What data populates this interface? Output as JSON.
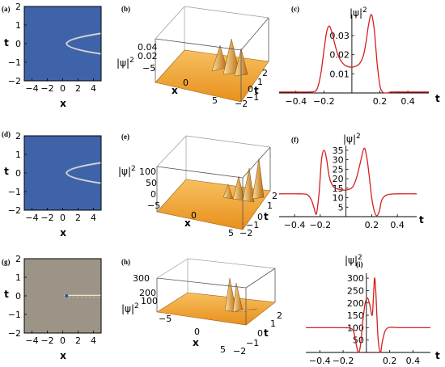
{
  "colors": {
    "density_blue": "#3f63a8",
    "density_gray": "#9c9587",
    "surface_orange": "#f0a030",
    "curve_red": "#d42020"
  },
  "chart_data": [
    {
      "panel": "a",
      "label": "(a)",
      "type": "heatmap",
      "xlabel": "x",
      "ylabel": "t",
      "xlim": [
        -5,
        5
      ],
      "ylim": [
        -2,
        2
      ],
      "xticks": [
        {
          "v": -4,
          "t": "−4"
        },
        {
          "v": -2,
          "t": "−2"
        },
        {
          "v": 0,
          "t": "0"
        },
        {
          "v": 2,
          "t": "2"
        },
        {
          "v": 4,
          "t": "4"
        }
      ],
      "yticks": [
        {
          "v": 2,
          "t": "2"
        },
        {
          "v": 1,
          "t": "1"
        },
        {
          "v": 0,
          "t": "0"
        },
        {
          "v": -1,
          "t": "−1"
        },
        {
          "v": -2,
          "t": "−2"
        }
      ],
      "background": "#3f63a8",
      "ridge": "parabolic ridge opening toward +x from x≈0.5, t≈0"
    },
    {
      "panel": "b",
      "label": "(b)",
      "type": "surface3d",
      "xlabel": "x",
      "ylabel": "t",
      "zlabel": "|ψ|²",
      "xticks": [
        "−5",
        "0",
        "5"
      ],
      "tticks": [
        "−2",
        "−1",
        "0",
        "1",
        "2"
      ],
      "zticks": [
        "0.04",
        "0.02"
      ]
    },
    {
      "panel": "c",
      "label": "(c)",
      "type": "line",
      "xlabel": "t",
      "ylabel": "|ψ|²",
      "xlim": [
        -0.52,
        0.55
      ],
      "ylim": [
        0,
        0.041
      ],
      "xticks": [
        {
          "v": -0.4,
          "t": "−0.4"
        },
        {
          "v": -0.2,
          "t": "−0.2"
        },
        {
          "v": 0.2,
          "t": "0.2"
        },
        {
          "v": 0.4,
          "t": "0.4"
        }
      ],
      "yticks": [
        {
          "v": 0.01,
          "t": "0.01"
        },
        {
          "v": 0.02,
          "t": "0.02"
        },
        {
          "v": 0.03,
          "t": "0.03"
        }
      ],
      "x": [
        -0.52,
        -0.4,
        -0.3,
        -0.26,
        -0.24,
        -0.22,
        -0.2,
        -0.18,
        -0.16,
        -0.14,
        -0.12,
        -0.1,
        -0.08,
        -0.05,
        0,
        0.05,
        0.08,
        0.1,
        0.12,
        0.14,
        0.16,
        0.18,
        0.2,
        0.22,
        0.25,
        0.28,
        0.32,
        0.4,
        0.55
      ],
      "y": [
        0.0005,
        0.0005,
        0.0005,
        0.001,
        0.004,
        0.011,
        0.022,
        0.032,
        0.035,
        0.031,
        0.025,
        0.02,
        0.017,
        0.0145,
        0.0135,
        0.015,
        0.019,
        0.026,
        0.036,
        0.041,
        0.033,
        0.016,
        0.004,
        0.0005,
        0,
        0.0005,
        0.0005,
        0.0005,
        0.0005
      ]
    },
    {
      "panel": "d",
      "label": "(d)",
      "type": "heatmap",
      "xlabel": "x",
      "ylabel": "t",
      "xlim": [
        -5,
        5
      ],
      "ylim": [
        -2,
        2
      ],
      "xticks": [
        {
          "v": -4,
          "t": "−4"
        },
        {
          "v": -2,
          "t": "−2"
        },
        {
          "v": 0,
          "t": "0"
        },
        {
          "v": 2,
          "t": "2"
        },
        {
          "v": 4,
          "t": "4"
        }
      ],
      "yticks": [
        {
          "v": 2,
          "t": "2"
        },
        {
          "v": 1,
          "t": "1"
        },
        {
          "v": 0,
          "t": "0"
        },
        {
          "v": -1,
          "t": "−1"
        },
        {
          "v": -2,
          "t": "−2"
        }
      ],
      "background": "#3f63a8",
      "ridge": "parabolic ridge opening toward +x from x≈0.5, t≈0"
    },
    {
      "panel": "e",
      "label": "(e)",
      "type": "surface3d",
      "xlabel": "x",
      "ylabel": "t",
      "zlabel": "|ψ|²",
      "xticks": [
        "−5",
        "0",
        "5"
      ],
      "tticks": [
        "−2",
        "−1",
        "0",
        "1",
        "2"
      ],
      "zticks": [
        "100",
        "50",
        "0"
      ]
    },
    {
      "panel": "f",
      "label": "(f)",
      "type": "line",
      "xlabel": "t",
      "ylabel": "|ψ|²",
      "xlim": [
        -0.52,
        0.55
      ],
      "ylim": [
        0,
        37.5
      ],
      "xticks": [
        {
          "v": -0.4,
          "t": "−0.4"
        },
        {
          "v": -0.2,
          "t": "−0.2"
        },
        {
          "v": 0.2,
          "t": "0.2"
        },
        {
          "v": 0.4,
          "t": "0.4"
        }
      ],
      "yticks": [
        {
          "v": 5,
          "t": "5"
        },
        {
          "v": 10,
          "t": "10"
        },
        {
          "v": 15,
          "t": "15"
        },
        {
          "v": 20,
          "t": "20"
        },
        {
          "v": 25,
          "t": "25"
        },
        {
          "v": 30,
          "t": "30"
        },
        {
          "v": 35,
          "t": "35"
        }
      ],
      "x": [
        -0.52,
        -0.35,
        -0.3,
        -0.27,
        -0.25,
        -0.23,
        -0.21,
        -0.19,
        -0.17,
        -0.15,
        -0.13,
        -0.1,
        -0.06,
        0,
        0.05,
        0.08,
        0.11,
        0.14,
        0.16,
        0.18,
        0.2,
        0.22,
        0.24,
        0.26,
        0.28,
        0.32,
        0.4,
        0.55
      ],
      "y": [
        12,
        12,
        11.5,
        9,
        5,
        1.5,
        12,
        30,
        35,
        30,
        21,
        16,
        14.5,
        14,
        15.5,
        20,
        28,
        36,
        32,
        22,
        10,
        3,
        0.5,
        3,
        9,
        11.5,
        12,
        12
      ]
    },
    {
      "panel": "g",
      "label": "(g)",
      "type": "heatmap",
      "xlabel": "x",
      "ylabel": "t",
      "xlim": [
        -5,
        5
      ],
      "ylim": [
        -2,
        2
      ],
      "xticks": [
        {
          "v": -4,
          "t": "−4"
        },
        {
          "v": -2,
          "t": "−2"
        },
        {
          "v": 0,
          "t": "0"
        },
        {
          "v": 2,
          "t": "2"
        },
        {
          "v": 4,
          "t": "4"
        }
      ],
      "yticks": [
        {
          "v": 2,
          "t": "2"
        },
        {
          "v": 1,
          "t": "1"
        },
        {
          "v": 0,
          "t": "0"
        },
        {
          "v": -1,
          "t": "−1"
        },
        {
          "v": -2,
          "t": "−2"
        }
      ],
      "background": "#9c9587",
      "ridge": "narrow bright streak along t≈0 for x>0"
    },
    {
      "panel": "h",
      "label": "(h)",
      "type": "surface3d",
      "xlabel": "x",
      "ylabel": "t",
      "zlabel": "|ψ|²",
      "xticks": [
        "−5",
        "0",
        "5"
      ],
      "tticks": [
        "−2",
        "−1",
        "0",
        "1",
        "2"
      ],
      "zticks": [
        "300",
        "200",
        "100"
      ]
    },
    {
      "panel": "i",
      "label": "(i)",
      "type": "line",
      "xlabel": "t",
      "ylabel": "|ψ|²",
      "xlim": [
        -0.52,
        0.55
      ],
      "ylim": [
        0,
        320
      ],
      "xticks": [
        {
          "v": -0.4,
          "t": "−0.4"
        },
        {
          "v": -0.2,
          "t": "−0.2"
        },
        {
          "v": 0.2,
          "t": "0.2"
        },
        {
          "v": 0.4,
          "t": "0.4"
        }
      ],
      "yticks": [
        {
          "v": 50,
          "t": "50"
        },
        {
          "v": 100,
          "t": "100"
        },
        {
          "v": 150,
          "t": "150"
        },
        {
          "v": 200,
          "t": "200"
        },
        {
          "v": 250,
          "t": "250"
        },
        {
          "v": 300,
          "t": "300"
        }
      ],
      "x": [
        -0.52,
        -0.2,
        -0.14,
        -0.11,
        -0.09,
        -0.07,
        -0.05,
        -0.03,
        -0.01,
        0.01,
        0.03,
        0.05,
        0.06,
        0.07,
        0.08,
        0.1,
        0.12,
        0.14,
        0.18,
        0.3,
        0.55
      ],
      "y": [
        100,
        100,
        98,
        85,
        40,
        0,
        30,
        130,
        200,
        220,
        190,
        150,
        220,
        300,
        250,
        60,
        0,
        50,
        98,
        100,
        100
      ]
    }
  ]
}
